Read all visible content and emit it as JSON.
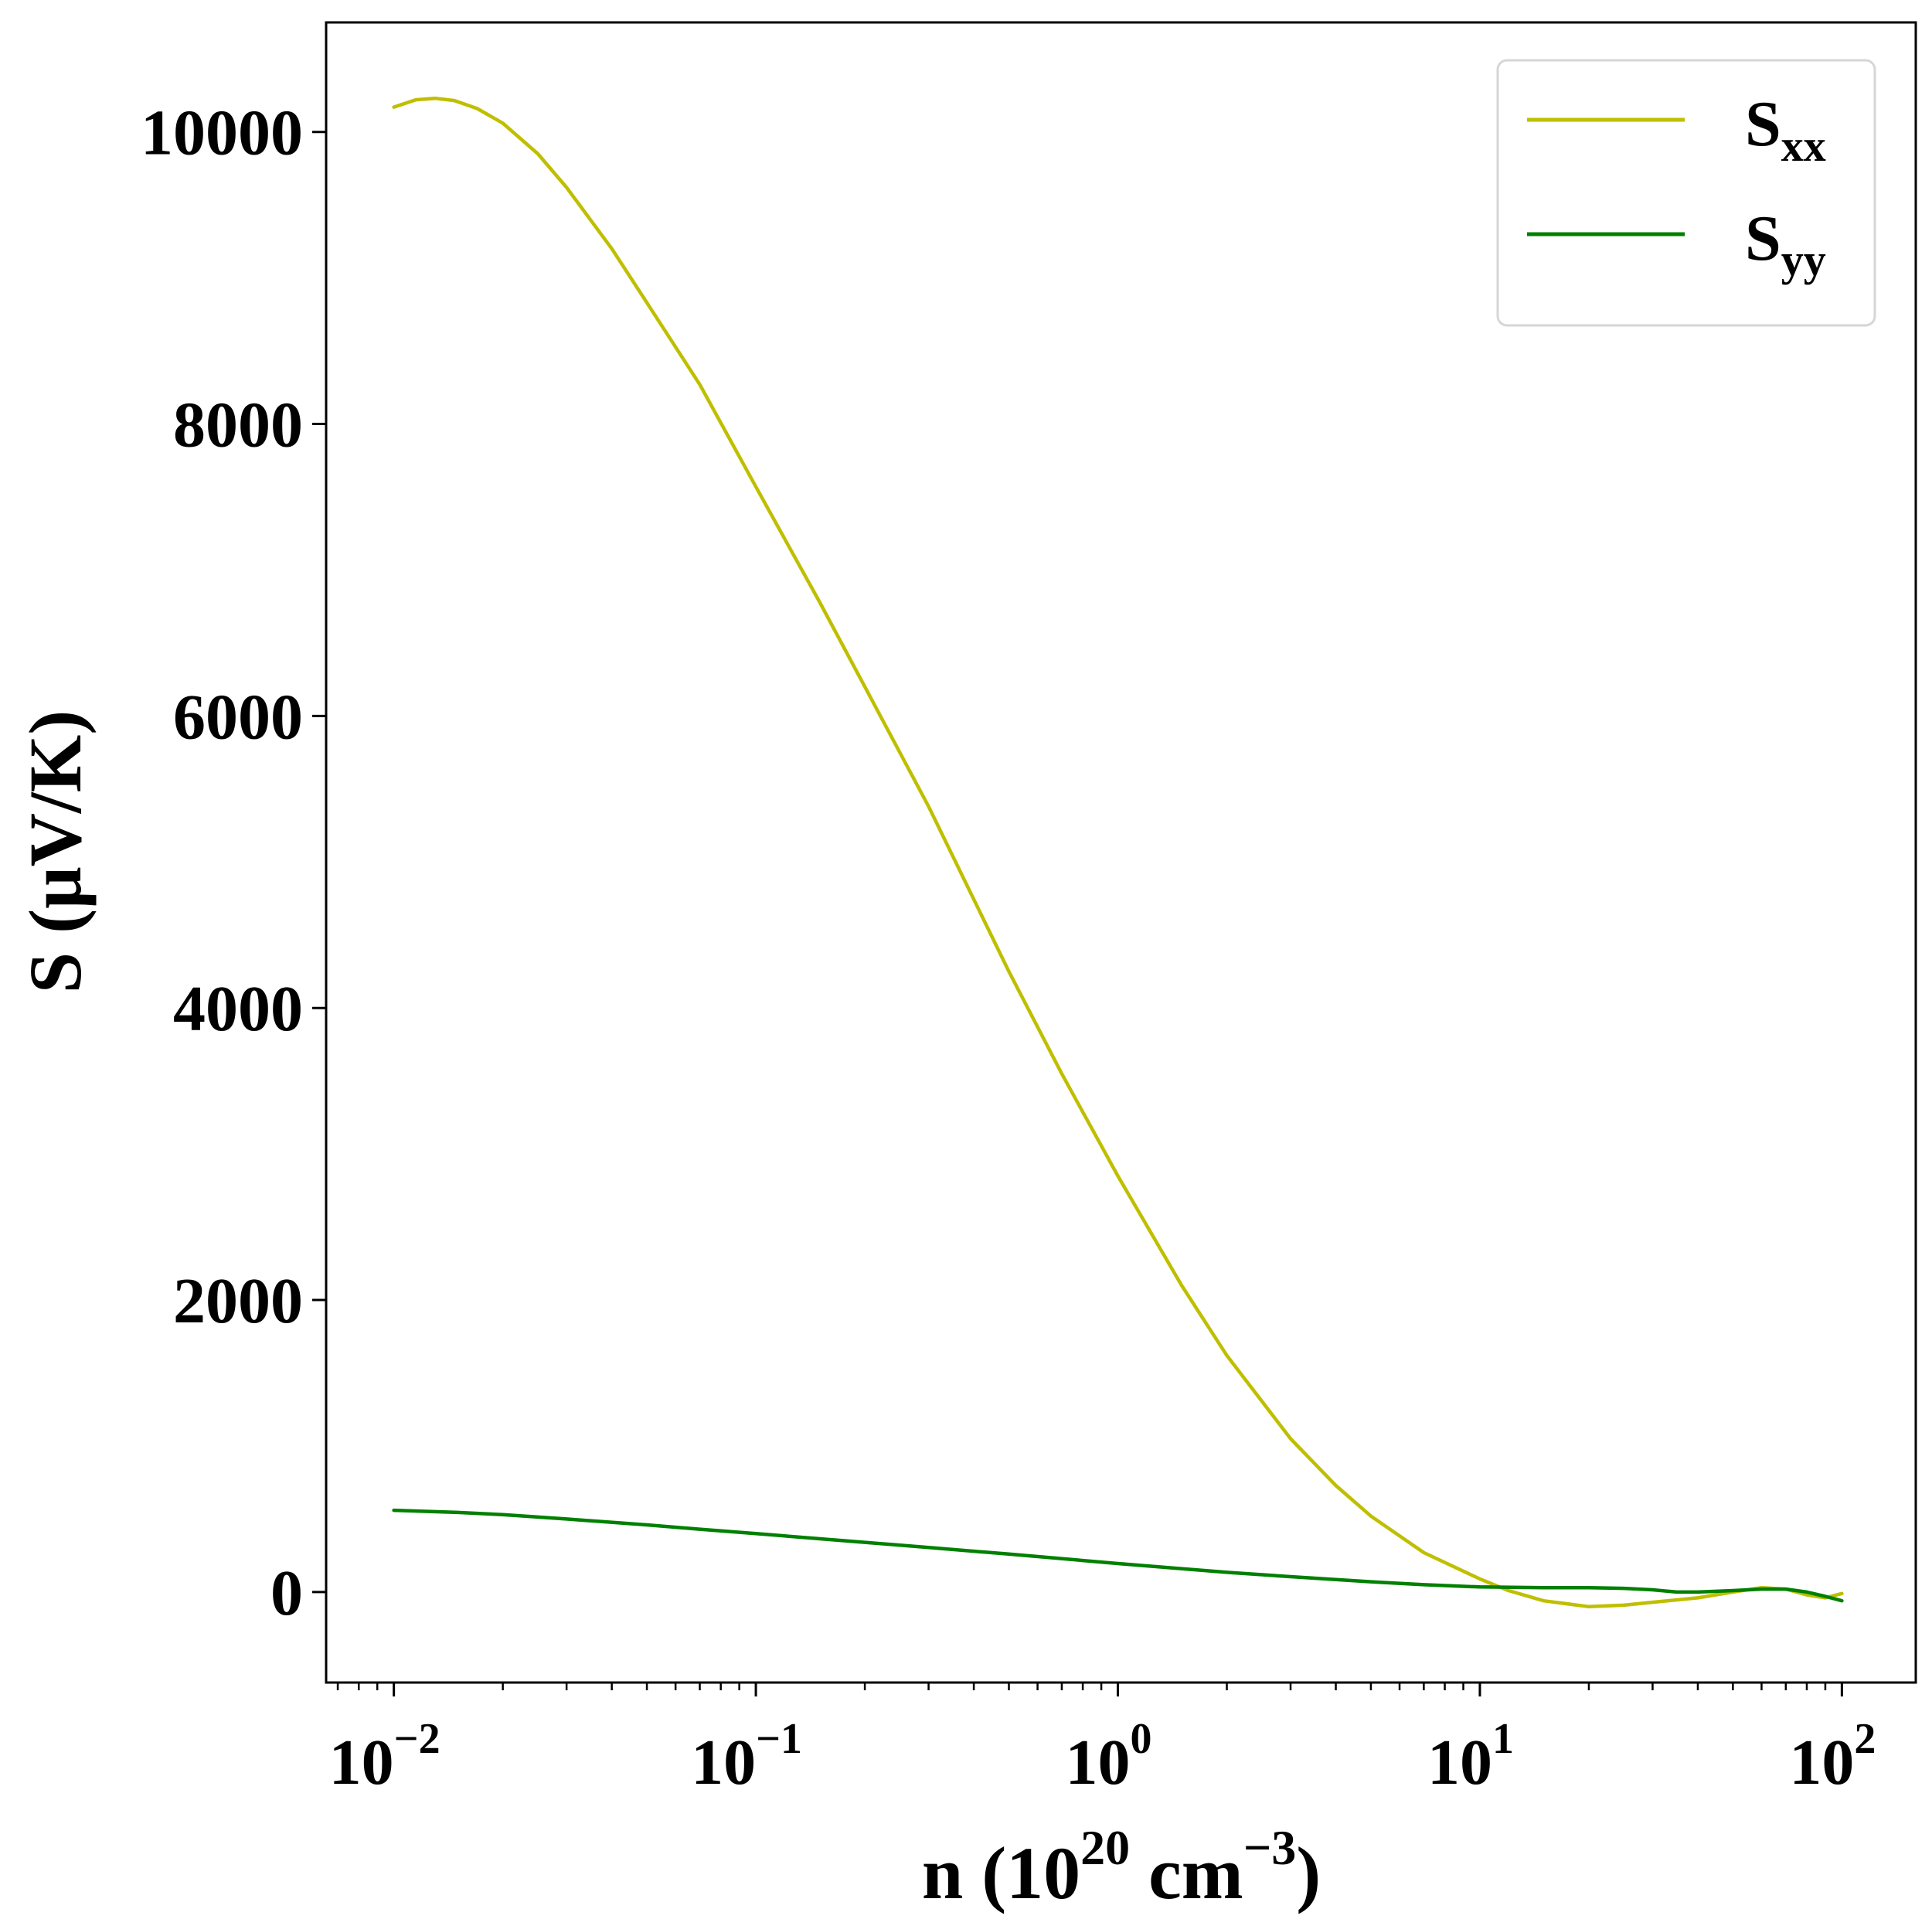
{
  "chart_data": {
    "type": "line",
    "xscale": "log",
    "xlim": [
      0.0065,
      160
    ],
    "ylim": [
      -620,
      10750
    ],
    "xticks": [
      {
        "value": 0.01,
        "base": "10",
        "exp": "−2"
      },
      {
        "value": 0.1,
        "base": "10",
        "exp": "−1"
      },
      {
        "value": 1,
        "base": "10",
        "exp": "0"
      },
      {
        "value": 10,
        "base": "10",
        "exp": "1"
      },
      {
        "value": 100,
        "base": "10",
        "exp": "2"
      }
    ],
    "yticks": [
      {
        "value": 0,
        "label": "0"
      },
      {
        "value": 2000,
        "label": "2000"
      },
      {
        "value": 4000,
        "label": "4000"
      },
      {
        "value": 6000,
        "label": "6000"
      },
      {
        "value": 8000,
        "label": "8000"
      },
      {
        "value": 10000,
        "label": "10000"
      }
    ],
    "xlabel": {
      "pre": "n (10",
      "sup1": "20",
      "mid": " cm",
      "sup2": "−3",
      "post": ")"
    },
    "ylabel": "S (μV/K)",
    "grid": false,
    "legend_position": "top-right",
    "series": [
      {
        "name": {
          "base": "S",
          "sub": "xx"
        },
        "color": "#bfbf00",
        "x": [
          0.01,
          0.0115,
          0.013,
          0.0147,
          0.017,
          0.02,
          0.025,
          0.03,
          0.04,
          0.05,
          0.07,
          0.1,
          0.15,
          0.2,
          0.3,
          0.5,
          0.7,
          1.0,
          1.5,
          2.0,
          3.0,
          4.0,
          5.0,
          7.0,
          10.0,
          12.0,
          15.0,
          20.0,
          25.0,
          30.0,
          40.0,
          50.0,
          60.0,
          70.0,
          80.0,
          90.0,
          100.0
        ],
        "y": [
          10170,
          10220,
          10230,
          10215,
          10160,
          10060,
          9850,
          9620,
          9200,
          8830,
          8270,
          7570,
          6780,
          6200,
          5380,
          4250,
          3550,
          2850,
          2100,
          1620,
          1050,
          730,
          520,
          270,
          90,
          10,
          -60,
          -100,
          -90,
          -70,
          -40,
          0,
          30,
          20,
          -20,
          -40,
          -10
        ]
      },
      {
        "name": {
          "base": "S",
          "sub": "yy"
        },
        "color": "#008000",
        "x": [
          0.01,
          0.015,
          0.02,
          0.03,
          0.05,
          0.07,
          0.1,
          0.2,
          0.3,
          0.5,
          1.0,
          2.0,
          3.0,
          5.0,
          7.0,
          10.0,
          15.0,
          20.0,
          25.0,
          30.0,
          35.0,
          40.0,
          50.0,
          60.0,
          70.0,
          80.0,
          90.0,
          100.0
        ],
        "y": [
          560,
          545,
          530,
          500,
          460,
          430,
          400,
          340,
          305,
          260,
          195,
          135,
          105,
          70,
          50,
          35,
          30,
          30,
          25,
          15,
          0,
          0,
          10,
          20,
          20,
          0,
          -30,
          -60
        ]
      }
    ]
  }
}
